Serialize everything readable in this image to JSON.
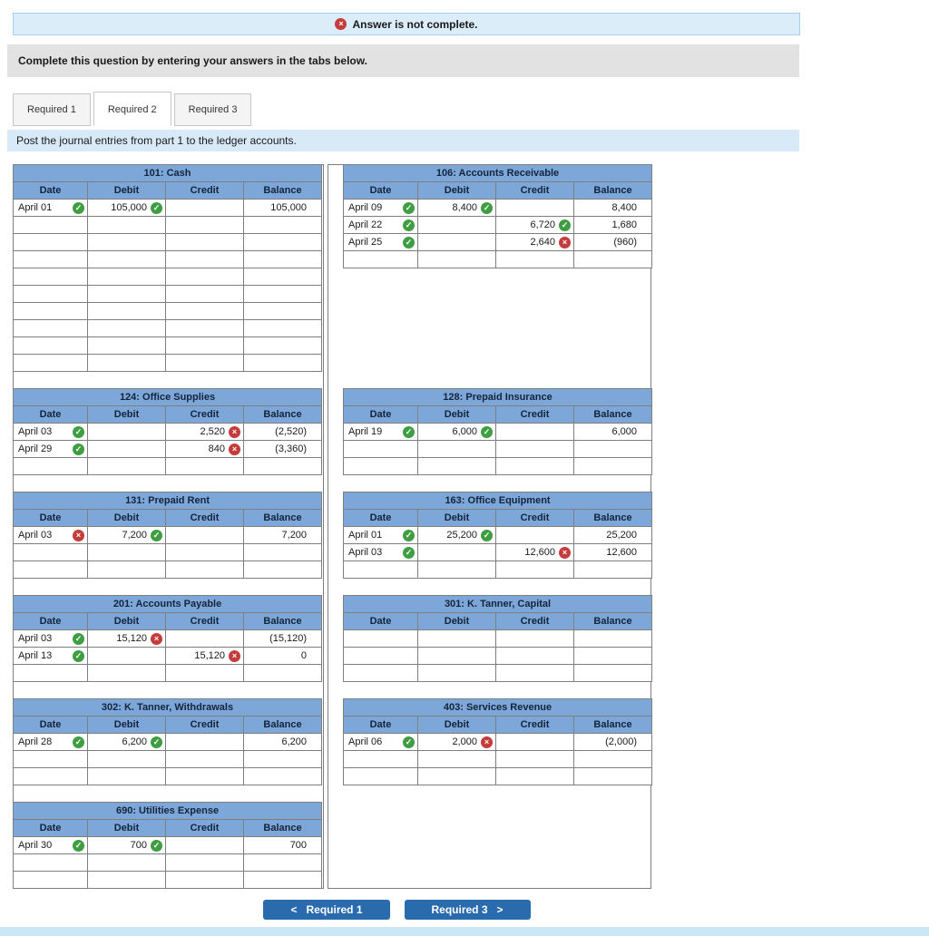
{
  "banner": {
    "text": "Answer is not complete."
  },
  "subheader": "Complete this question by entering your answers in the tabs below.",
  "tabs": [
    {
      "label": "Required 1",
      "active": false
    },
    {
      "label": "Required 2",
      "active": true
    },
    {
      "label": "Required 3",
      "active": false
    }
  ],
  "instruction": "Post the journal entries from part 1 to the ledger accounts.",
  "column_headers": [
    "Date",
    "Debit",
    "Credit",
    "Balance"
  ],
  "colors": {
    "header_blue": "#7da7d8",
    "table_border": "#7f7f7f",
    "correct_green": "#3e9e41",
    "incorrect_red": "#c43c3c",
    "wrong_cell_bg": "#f8e2e2",
    "banner_bg": "#dbedf9",
    "banner_border": "#a7cde8",
    "gray_bar_bg": "#e2e2e2",
    "instruction_bg": "#d8e9f8",
    "button_blue": "#2a6bae",
    "bottom_strip": "#cbe6f5"
  },
  "pairs": [
    {
      "left": {
        "title": "101: Cash",
        "rows": [
          {
            "date": "April 01",
            "date_mark": "check",
            "debit": "105,000",
            "debit_mark": "check",
            "credit": "",
            "credit_mark": "",
            "balance": "105,000"
          }
        ],
        "empty_rows": 9
      },
      "right": {
        "title": "106: Accounts Receivable",
        "rows": [
          {
            "date": "April 09",
            "date_mark": "check",
            "debit": "8,400",
            "debit_mark": "check",
            "credit": "",
            "credit_mark": "",
            "balance": "8,400"
          },
          {
            "date": "April 22",
            "date_mark": "check",
            "debit": "",
            "debit_mark": "",
            "credit": "6,720",
            "credit_mark": "check",
            "balance": "1,680"
          },
          {
            "date": "April 25",
            "date_mark": "check",
            "debit": "",
            "debit_mark": "",
            "credit": "2,640",
            "credit_mark": "x",
            "balance": "(960)"
          }
        ],
        "empty_rows": 1
      }
    },
    {
      "left": {
        "title": "124: Office Supplies",
        "rows": [
          {
            "date": "April 03",
            "date_mark": "check",
            "debit": "",
            "debit_mark": "",
            "credit": "2,520",
            "credit_mark": "x",
            "balance": "(2,520)"
          },
          {
            "date": "April 29",
            "date_mark": "check",
            "debit": "",
            "debit_mark": "",
            "credit": "840",
            "credit_mark": "x",
            "balance": "(3,360)"
          }
        ],
        "empty_rows": 1
      },
      "right": {
        "title": "128: Prepaid Insurance",
        "rows": [
          {
            "date": "April 19",
            "date_mark": "check",
            "debit": "6,000",
            "debit_mark": "check",
            "credit": "",
            "credit_mark": "",
            "balance": "6,000"
          }
        ],
        "empty_rows": 2
      }
    },
    {
      "left": {
        "title": "131: Prepaid Rent",
        "rows": [
          {
            "date": "April 03",
            "date_mark": "x",
            "debit": "7,200",
            "debit_mark": "check",
            "credit": "",
            "credit_mark": "",
            "balance": "7,200"
          }
        ],
        "empty_rows": 2
      },
      "right": {
        "title": "163: Office Equipment",
        "rows": [
          {
            "date": "April 01",
            "date_mark": "check",
            "debit": "25,200",
            "debit_mark": "check",
            "credit": "",
            "credit_mark": "",
            "balance": "25,200"
          },
          {
            "date": "April 03",
            "date_mark": "check",
            "debit": "",
            "debit_mark": "",
            "credit": "12,600",
            "credit_mark": "x",
            "balance": "12,600"
          }
        ],
        "empty_rows": 1
      }
    },
    {
      "left": {
        "title": "201: Accounts Payable",
        "rows": [
          {
            "date": "April 03",
            "date_mark": "check",
            "debit": "15,120",
            "debit_mark": "x",
            "credit": "",
            "credit_mark": "",
            "balance": "(15,120)"
          },
          {
            "date": "April 13",
            "date_mark": "check",
            "debit": "",
            "debit_mark": "",
            "credit": "15,120",
            "credit_mark": "x",
            "balance": "0"
          }
        ],
        "empty_rows": 1
      },
      "right": {
        "title": "301: K. Tanner, Capital",
        "rows": [],
        "empty_rows": 3
      }
    },
    {
      "left": {
        "title": "302: K. Tanner, Withdrawals",
        "rows": [
          {
            "date": "April 28",
            "date_mark": "check",
            "debit": "6,200",
            "debit_mark": "check",
            "credit": "",
            "credit_mark": "",
            "balance": "6,200"
          }
        ],
        "empty_rows": 2
      },
      "right": {
        "title": "403: Services Revenue",
        "rows": [
          {
            "date": "April 06",
            "date_mark": "check",
            "debit": "2,000",
            "debit_mark": "x",
            "credit": "",
            "credit_mark": "",
            "balance": "(2,000)"
          }
        ],
        "empty_rows": 2
      }
    },
    {
      "left": {
        "title": "690: Utilities Expense",
        "rows": [
          {
            "date": "April 30",
            "date_mark": "check",
            "debit": "700",
            "debit_mark": "check",
            "credit": "",
            "credit_mark": "",
            "balance": "700"
          }
        ],
        "empty_rows": 2
      },
      "right": null
    }
  ],
  "footer": {
    "prev_label": "Required 1",
    "next_label": "Required 3"
  }
}
